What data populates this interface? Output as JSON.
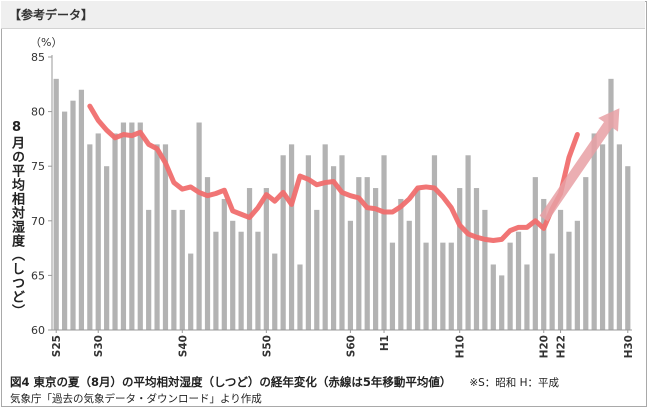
{
  "header": {
    "label": "【参考データ】"
  },
  "caption": {
    "figure": "図4 東京の夏（8月）の平均相対湿度（しつど）の経年変化（赤線は5年移動平均値）",
    "note": "※S：昭和 H：平成",
    "source": "気象庁「過去の気象データ・ダウンロード」より作成"
  },
  "chart_data": {
    "type": "bar",
    "unit_label": "（%）",
    "ylabel": "8月の平均相対湿度（しつど）",
    "ylim": [
      60,
      85
    ],
    "yticks": [
      60,
      65,
      70,
      75,
      80,
      85
    ],
    "grid": false,
    "years": [
      1950,
      1951,
      1952,
      1953,
      1954,
      1955,
      1956,
      1957,
      1958,
      1959,
      1960,
      1961,
      1962,
      1963,
      1964,
      1965,
      1966,
      1967,
      1968,
      1969,
      1970,
      1971,
      1972,
      1973,
      1974,
      1975,
      1976,
      1977,
      1978,
      1979,
      1980,
      1981,
      1982,
      1983,
      1984,
      1985,
      1986,
      1987,
      1988,
      1989,
      1990,
      1991,
      1992,
      1993,
      1994,
      1995,
      1996,
      1997,
      1998,
      1999,
      2000,
      2001,
      2002,
      2003,
      2004,
      2005,
      2006,
      2007,
      2008,
      2009,
      2010,
      2011,
      2012,
      2013,
      2014,
      2015,
      2016,
      2017,
      2018
    ],
    "x_tick_labels": [
      {
        "year": 1950,
        "label": "S25"
      },
      {
        "year": 1955,
        "label": "S30"
      },
      {
        "year": 1965,
        "label": "S40"
      },
      {
        "year": 1975,
        "label": "S50"
      },
      {
        "year": 1985,
        "label": "S60"
      },
      {
        "year": 1989,
        "label": "H1"
      },
      {
        "year": 1998,
        "label": "H10"
      },
      {
        "year": 2008,
        "label": "H20"
      },
      {
        "year": 2010,
        "label": "H22"
      },
      {
        "year": 2018,
        "label": "H30"
      }
    ],
    "series": [
      {
        "type": "bar",
        "color": "#b3b3b3",
        "values": [
          83,
          80,
          81,
          82,
          77,
          78,
          75,
          78,
          79,
          79,
          79,
          71,
          77,
          77,
          71,
          71,
          67,
          79,
          74,
          69,
          72,
          70,
          69,
          73,
          69,
          73,
          67,
          76,
          77,
          66,
          76,
          71,
          77,
          75,
          76,
          70,
          74,
          74,
          73,
          76,
          68,
          72,
          70,
          73,
          68,
          76,
          68,
          68,
          73,
          76,
          73,
          71,
          66,
          65,
          68,
          69,
          66,
          74,
          72,
          67,
          71,
          69,
          70,
          74,
          78,
          77,
          83,
          77,
          75
        ],
        "values_note": "estimated"
      },
      {
        "type": "line",
        "color": "#f06e6e",
        "x_start": 1954,
        "values": [
          80.5,
          79.2,
          78.3,
          77.6,
          77.9,
          77.8,
          78.1,
          77.0,
          76.6,
          75.3,
          73.5,
          72.9,
          73.1,
          72.6,
          72.3,
          72.5,
          72.8,
          70.9,
          70.6,
          70.3,
          71.2,
          72.4,
          71.8,
          72.6,
          71.5,
          74.1,
          73.8,
          73.3,
          73.5,
          73.6,
          72.6,
          72.3,
          72.1,
          71.2,
          71.1,
          70.8,
          70.8,
          71.3,
          72.0,
          73.0,
          73.1,
          73.0,
          72.2,
          71.2,
          69.6,
          68.8,
          68.5,
          68.3,
          68.2,
          68.3,
          69.1,
          69.4,
          69.4,
          70.0,
          69.3,
          71.1,
          72.5,
          75.8,
          77.9
        ],
        "values_note": "5-year moving average (estimated)"
      }
    ],
    "annotations": [
      {
        "type": "arrow",
        "color": "#e8a0a4",
        "from": {
          "year": 2008,
          "value": 70.2
        },
        "to": {
          "year": 2017,
          "value": 80.3
        }
      }
    ]
  }
}
